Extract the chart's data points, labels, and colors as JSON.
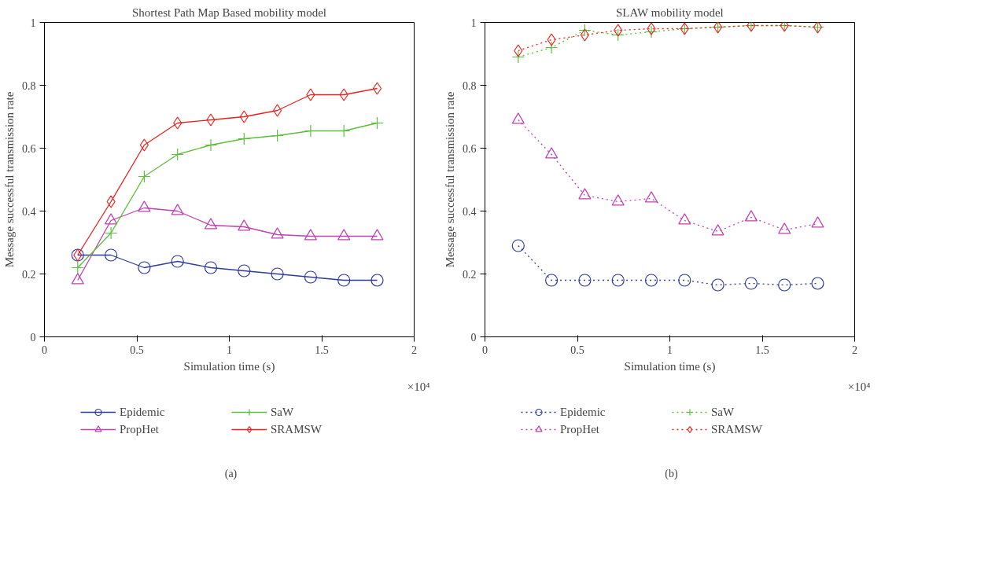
{
  "chart_data": [
    {
      "type": "line",
      "title": "Shortest Path Map Based mobility model",
      "xlabel": "Simulation time (s)",
      "ylabel": "Message successful transmission rate",
      "annotations": [
        "×10⁴",
        "(a)"
      ],
      "x": [
        0.18,
        0.36,
        0.54,
        0.72,
        0.9,
        1.08,
        1.26,
        1.44,
        1.62,
        1.8
      ],
      "xlim": [
        0,
        2
      ],
      "xticks": [
        0,
        0.5,
        1,
        1.5,
        2
      ],
      "ylim": [
        0,
        1
      ],
      "yticks": [
        0,
        0.2,
        0.4,
        0.6,
        0.8,
        1
      ],
      "grid": false,
      "legend": "bottom",
      "line_style": "solid",
      "series": [
        {
          "name": "Epidemic",
          "color": "#2e3b9e",
          "marker": "circle",
          "values": [
            0.26,
            0.26,
            0.22,
            0.24,
            0.22,
            0.21,
            0.2,
            0.19,
            0.18,
            0.18
          ]
        },
        {
          "name": "PropHet",
          "color": "#c040b0",
          "marker": "triangle",
          "values": [
            0.18,
            0.37,
            0.41,
            0.4,
            0.355,
            0.35,
            0.325,
            0.32,
            0.32,
            0.32
          ]
        },
        {
          "name": "SaW",
          "color": "#5cbf3a",
          "marker": "cross",
          "values": [
            0.22,
            0.33,
            0.51,
            0.58,
            0.61,
            0.63,
            0.64,
            0.655,
            0.655,
            0.68
          ]
        },
        {
          "name": "SRAMSW",
          "color": "#e8231f",
          "marker": "diamond",
          "values": [
            0.26,
            0.43,
            0.61,
            0.68,
            0.69,
            0.7,
            0.72,
            0.77,
            0.77,
            0.79
          ]
        }
      ]
    },
    {
      "type": "line",
      "title": "SLAW mobility model",
      "xlabel": "Simulation time (s)",
      "ylabel": "Message successful transmission rate",
      "annotations": [
        "×10⁴",
        "(b)"
      ],
      "x": [
        0.18,
        0.36,
        0.54,
        0.72,
        0.9,
        1.08,
        1.26,
        1.44,
        1.62,
        1.8
      ],
      "xlim": [
        0,
        2
      ],
      "xticks": [
        0,
        0.5,
        1,
        1.5,
        2
      ],
      "ylim": [
        0,
        1
      ],
      "yticks": [
        0,
        0.2,
        0.4,
        0.6,
        0.8,
        1
      ],
      "grid": false,
      "legend": "bottom",
      "line_style": "dotted",
      "series": [
        {
          "name": "Epidemic",
          "color": "#2e3b9e",
          "marker": "circle",
          "values": [
            0.29,
            0.18,
            0.18,
            0.18,
            0.18,
            0.18,
            0.165,
            0.17,
            0.165,
            0.17
          ]
        },
        {
          "name": "PropHet",
          "color": "#c040b0",
          "marker": "triangle",
          "values": [
            0.69,
            0.58,
            0.45,
            0.43,
            0.44,
            0.37,
            0.335,
            0.38,
            0.34,
            0.36
          ]
        },
        {
          "name": "SaW",
          "color": "#5cbf3a",
          "marker": "cross",
          "values": [
            0.89,
            0.92,
            0.975,
            0.96,
            0.97,
            0.98,
            0.985,
            0.99,
            0.99,
            0.985
          ]
        },
        {
          "name": "SRAMSW",
          "color": "#e8231f",
          "marker": "diamond",
          "values": [
            0.91,
            0.945,
            0.96,
            0.975,
            0.98,
            0.98,
            0.985,
            0.99,
            0.99,
            0.985
          ]
        }
      ]
    }
  ]
}
